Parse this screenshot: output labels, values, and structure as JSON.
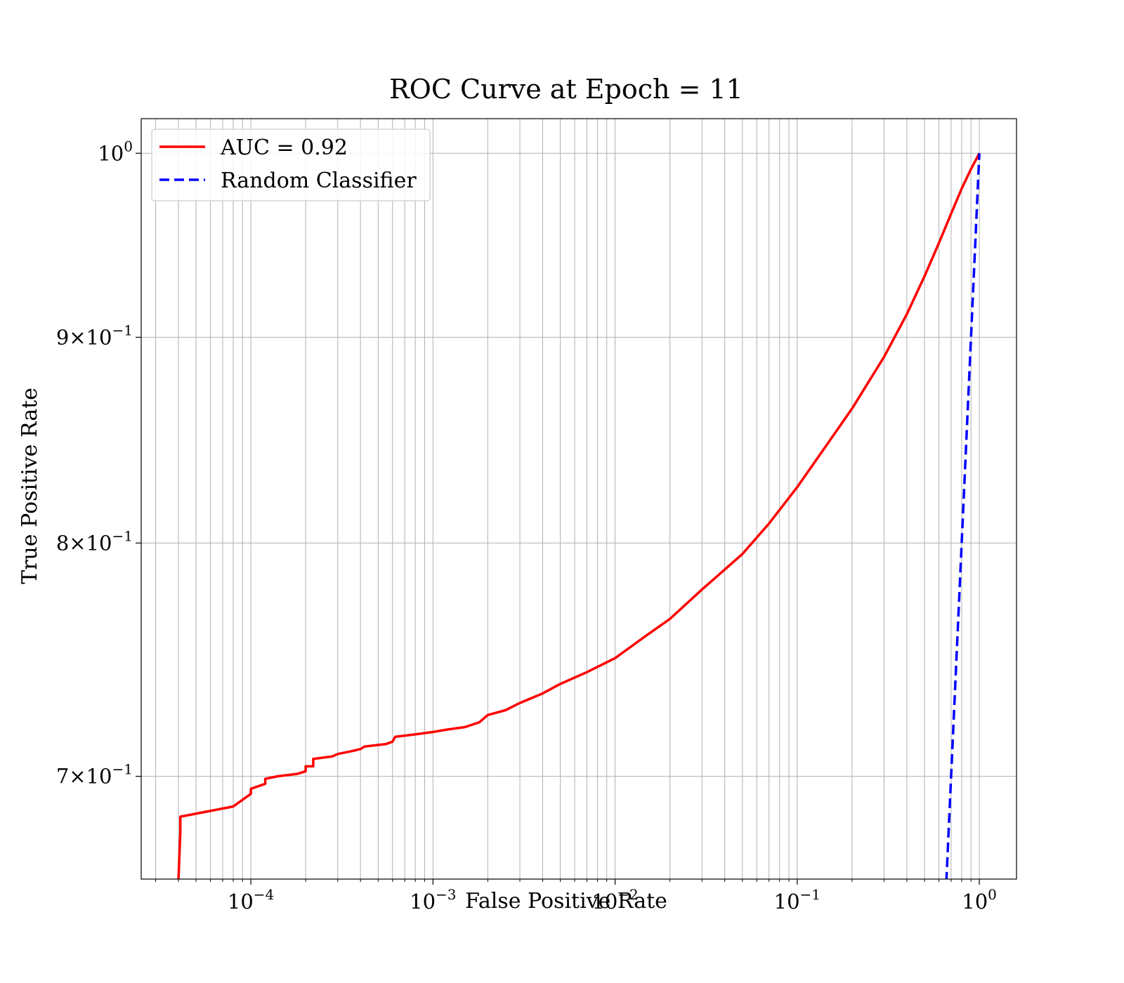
{
  "chart_data": {
    "type": "line",
    "title": "ROC Curve at Epoch = 11",
    "xlabel": "False Positive Rate",
    "ylabel": "True Positive Rate",
    "xscale": "log",
    "yscale": "log",
    "xlim": [
      2.5e-05,
      1.6
    ],
    "ylim": [
      0.66,
      1.02
    ],
    "grid": "both major and minor",
    "legend_position": "upper-left",
    "x_ticks": [
      {
        "value": 0.0001,
        "base": "10",
        "exp": "−4"
      },
      {
        "value": 0.001,
        "base": "10",
        "exp": "−3"
      },
      {
        "value": 0.01,
        "base": "10",
        "exp": "−2"
      },
      {
        "value": 0.1,
        "base": "10",
        "exp": "−1"
      },
      {
        "value": 1,
        "base": "10",
        "exp": "0"
      }
    ],
    "y_ticks": [
      {
        "value": 1.0,
        "base": "10",
        "exp": "0"
      },
      {
        "value": 0.9,
        "base": "9×10",
        "exp": "−1"
      },
      {
        "value": 0.8,
        "base": "8×10",
        "exp": "−1"
      },
      {
        "value": 0.7,
        "base": "7×10",
        "exp": "−1"
      }
    ],
    "series": [
      {
        "name": "AUC = 0.92",
        "color": "#ff0000",
        "style": "solid",
        "points": [
          [
            4e-05,
            0.659
          ],
          [
            4.1e-05,
            0.678
          ],
          [
            4.1e-05,
            0.684
          ],
          [
            8e-05,
            0.688
          ],
          [
            0.0001,
            0.693
          ],
          [
            0.0001,
            0.695
          ],
          [
            0.00012,
            0.697
          ],
          [
            0.00012,
            0.699
          ],
          [
            0.00014,
            0.7
          ],
          [
            0.00018,
            0.701
          ],
          [
            0.0002,
            0.702
          ],
          [
            0.0002,
            0.704
          ],
          [
            0.00022,
            0.704
          ],
          [
            0.00022,
            0.707
          ],
          [
            0.00028,
            0.708
          ],
          [
            0.0003,
            0.709
          ],
          [
            0.00035,
            0.71
          ],
          [
            0.0004,
            0.711
          ],
          [
            0.00042,
            0.712
          ],
          [
            0.00055,
            0.713
          ],
          [
            0.0006,
            0.714
          ],
          [
            0.00062,
            0.716
          ],
          [
            0.0008,
            0.717
          ],
          [
            0.001,
            0.718
          ],
          [
            0.0012,
            0.719
          ],
          [
            0.0015,
            0.72
          ],
          [
            0.0018,
            0.722
          ],
          [
            0.002,
            0.725
          ],
          [
            0.0025,
            0.727
          ],
          [
            0.003,
            0.73
          ],
          [
            0.004,
            0.734
          ],
          [
            0.005,
            0.738
          ],
          [
            0.007,
            0.743
          ],
          [
            0.01,
            0.749
          ],
          [
            0.015,
            0.759
          ],
          [
            0.02,
            0.766
          ],
          [
            0.03,
            0.779
          ],
          [
            0.05,
            0.795
          ],
          [
            0.07,
            0.809
          ],
          [
            0.1,
            0.826
          ],
          [
            0.15,
            0.848
          ],
          [
            0.2,
            0.864
          ],
          [
            0.3,
            0.89
          ],
          [
            0.4,
            0.912
          ],
          [
            0.5,
            0.932
          ],
          [
            0.6,
            0.95
          ],
          [
            0.7,
            0.966
          ],
          [
            0.8,
            0.98
          ],
          [
            0.9,
            0.991
          ],
          [
            1.0,
            1.0
          ]
        ]
      },
      {
        "name": "Random Classifier",
        "color": "#0000ff",
        "style": "dashed",
        "points": [
          [
            0.659,
            0.659
          ],
          [
            1.0,
            1.0
          ]
        ]
      }
    ]
  }
}
